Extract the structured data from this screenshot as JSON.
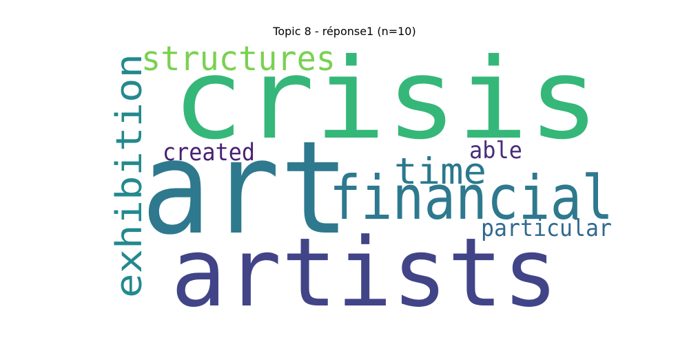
{
  "title": "Topic 8 - réponse1 (n=10)",
  "words": [
    {
      "text": "crisis",
      "color": "#35b779"
    },
    {
      "text": "art",
      "color": "#2e798e"
    },
    {
      "text": "artists",
      "color": "#414487"
    },
    {
      "text": "financial",
      "color": "#2e798e"
    },
    {
      "text": "exhibition",
      "color": "#23898e"
    },
    {
      "text": "structures",
      "color": "#7ad151"
    },
    {
      "text": "time",
      "color": "#2a788e"
    },
    {
      "text": "created",
      "color": "#482173"
    },
    {
      "text": "able",
      "color": "#472d7b"
    },
    {
      "text": "particular",
      "color": "#31688e"
    }
  ]
}
